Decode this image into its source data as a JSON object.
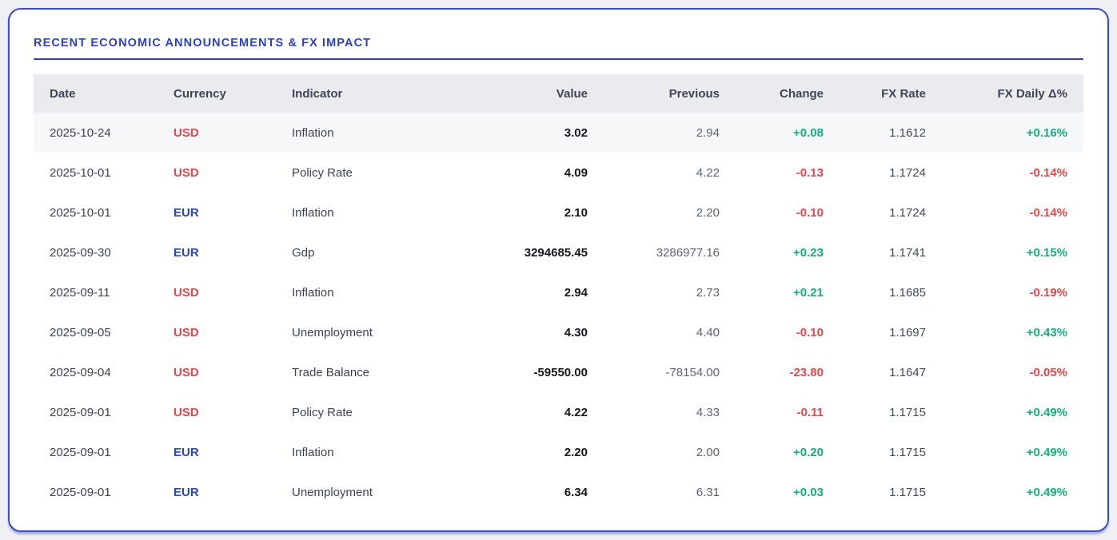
{
  "panel": {
    "title": "RECENT ECONOMIC ANNOUNCEMENTS & FX IMPACT"
  },
  "colors": {
    "accent-blue": "#2b3fc0",
    "usd-red": "#e8464b",
    "eur-blue": "#2944c4",
    "pos-green": "#10b27c",
    "neg-red": "#ea4549",
    "page-bg": "#eef0f4",
    "header-bg": "#e9ebef",
    "row-highlight": "#f6f7f9"
  },
  "table": {
    "highlighted_row": 0,
    "columns": [
      {
        "key": "date",
        "label": "Date",
        "align": "left"
      },
      {
        "key": "currency",
        "label": "Currency",
        "align": "left"
      },
      {
        "key": "indicator",
        "label": "Indicator",
        "align": "left"
      },
      {
        "key": "value",
        "label": "Value",
        "align": "right"
      },
      {
        "key": "previous",
        "label": "Previous",
        "align": "right"
      },
      {
        "key": "change",
        "label": "Change",
        "align": "right"
      },
      {
        "key": "fx_rate",
        "label": "FX Rate",
        "align": "right"
      },
      {
        "key": "fx_daily",
        "label": "FX Daily Δ%",
        "align": "right"
      }
    ],
    "rows": [
      {
        "date": "2025-10-24",
        "currency": "USD",
        "indicator": "Inflation",
        "value": "3.02",
        "previous": "2.94",
        "change": "+0.08",
        "fx_rate": "1.1612",
        "fx_daily": "+0.16%"
      },
      {
        "date": "2025-10-01",
        "currency": "USD",
        "indicator": "Policy Rate",
        "value": "4.09",
        "previous": "4.22",
        "change": "-0.13",
        "fx_rate": "1.1724",
        "fx_daily": "-0.14%"
      },
      {
        "date": "2025-10-01",
        "currency": "EUR",
        "indicator": "Inflation",
        "value": "2.10",
        "previous": "2.20",
        "change": "-0.10",
        "fx_rate": "1.1724",
        "fx_daily": "-0.14%"
      },
      {
        "date": "2025-09-30",
        "currency": "EUR",
        "indicator": "Gdp",
        "value": "3294685.45",
        "previous": "3286977.16",
        "change": "+0.23",
        "fx_rate": "1.1741",
        "fx_daily": "+0.15%"
      },
      {
        "date": "2025-09-11",
        "currency": "USD",
        "indicator": "Inflation",
        "value": "2.94",
        "previous": "2.73",
        "change": "+0.21",
        "fx_rate": "1.1685",
        "fx_daily": "-0.19%"
      },
      {
        "date": "2025-09-05",
        "currency": "USD",
        "indicator": "Unemployment",
        "value": "4.30",
        "previous": "4.40",
        "change": "-0.10",
        "fx_rate": "1.1697",
        "fx_daily": "+0.43%"
      },
      {
        "date": "2025-09-04",
        "currency": "USD",
        "indicator": "Trade Balance",
        "value": "-59550.00",
        "previous": "-78154.00",
        "change": "-23.80",
        "fx_rate": "1.1647",
        "fx_daily": "-0.05%"
      },
      {
        "date": "2025-09-01",
        "currency": "USD",
        "indicator": "Policy Rate",
        "value": "4.22",
        "previous": "4.33",
        "change": "-0.11",
        "fx_rate": "1.1715",
        "fx_daily": "+0.49%"
      },
      {
        "date": "2025-09-01",
        "currency": "EUR",
        "indicator": "Inflation",
        "value": "2.20",
        "previous": "2.00",
        "change": "+0.20",
        "fx_rate": "1.1715",
        "fx_daily": "+0.49%"
      },
      {
        "date": "2025-09-01",
        "currency": "EUR",
        "indicator": "Unemployment",
        "value": "6.34",
        "previous": "6.31",
        "change": "+0.03",
        "fx_rate": "1.1715",
        "fx_daily": "+0.49%"
      }
    ]
  }
}
